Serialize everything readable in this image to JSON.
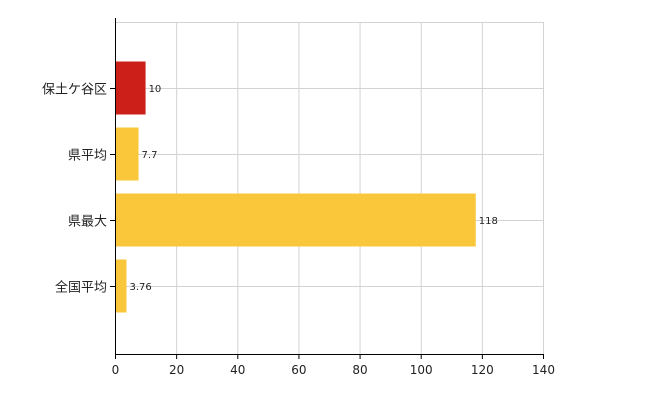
{
  "chart_data": {
    "type": "bar",
    "orientation": "horizontal",
    "categories": [
      "保土ケ谷区",
      "県平均",
      "県最大",
      "全国平均"
    ],
    "values": [
      10,
      7.7,
      118,
      3.76
    ],
    "value_labels": [
      "10",
      "7.7",
      "118",
      "3.76"
    ],
    "bar_colors": [
      "#cc1f1a",
      "#fbc73a",
      "#fbc73a",
      "#fbc73a"
    ],
    "xlim": [
      0,
      140
    ],
    "xticks": [
      0,
      20,
      40,
      60,
      80,
      100,
      120,
      140
    ],
    "xtick_labels": [
      "0",
      "20",
      "40",
      "60",
      "80",
      "100",
      "120",
      "140"
    ],
    "grid": true,
    "legend": "none"
  }
}
